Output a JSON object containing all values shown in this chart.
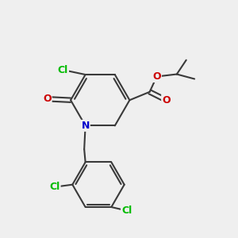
{
  "bg_color": "#efefef",
  "bond_color": "#3a3a3a",
  "bond_width": 1.5,
  "atom_colors": {
    "Cl": "#00bb00",
    "O": "#cc0000",
    "N": "#0000cc",
    "C": "#3a3a3a"
  },
  "font_size": 9.0,
  "fig_size": [
    3.0,
    3.0
  ],
  "dpi": 100,
  "xlim": [
    0,
    10
  ],
  "ylim": [
    0,
    10
  ]
}
